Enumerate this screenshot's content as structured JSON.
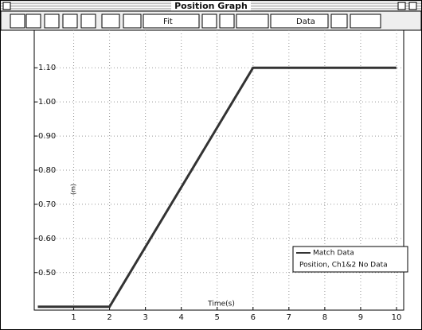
{
  "window": {
    "title": "Position Graph"
  },
  "toolbar": {
    "fit": "Fit",
    "data": "Data"
  },
  "chart_data": {
    "type": "line",
    "x_label": "Time(s)",
    "y_label": "(m)",
    "x": [
      0,
      2,
      6,
      10
    ],
    "series": [
      {
        "name": "Match Data",
        "color": "#333333",
        "values": [
          0.4,
          0.4,
          1.1,
          1.1
        ]
      }
    ],
    "legend_note": "Position, Ch1&2 No Data",
    "xlim": [
      -0.1,
      10.2
    ],
    "xticks": [
      1,
      2,
      3,
      4,
      5,
      6,
      7,
      8,
      9,
      10
    ],
    "ylim": [
      0.39,
      1.21
    ],
    "yticks": [
      {
        "value": 0.5,
        "label": "0.50"
      },
      {
        "value": 0.6,
        "label": "0.60"
      },
      {
        "value": 0.7,
        "label": "0.70"
      },
      {
        "value": 0.8,
        "label": "0.80"
      },
      {
        "value": 0.9,
        "label": "0.90"
      },
      {
        "value": 1.0,
        "label": "1.00"
      },
      {
        "value": 1.1,
        "label": "1.10"
      }
    ],
    "grid": true,
    "legend": "lower right"
  }
}
